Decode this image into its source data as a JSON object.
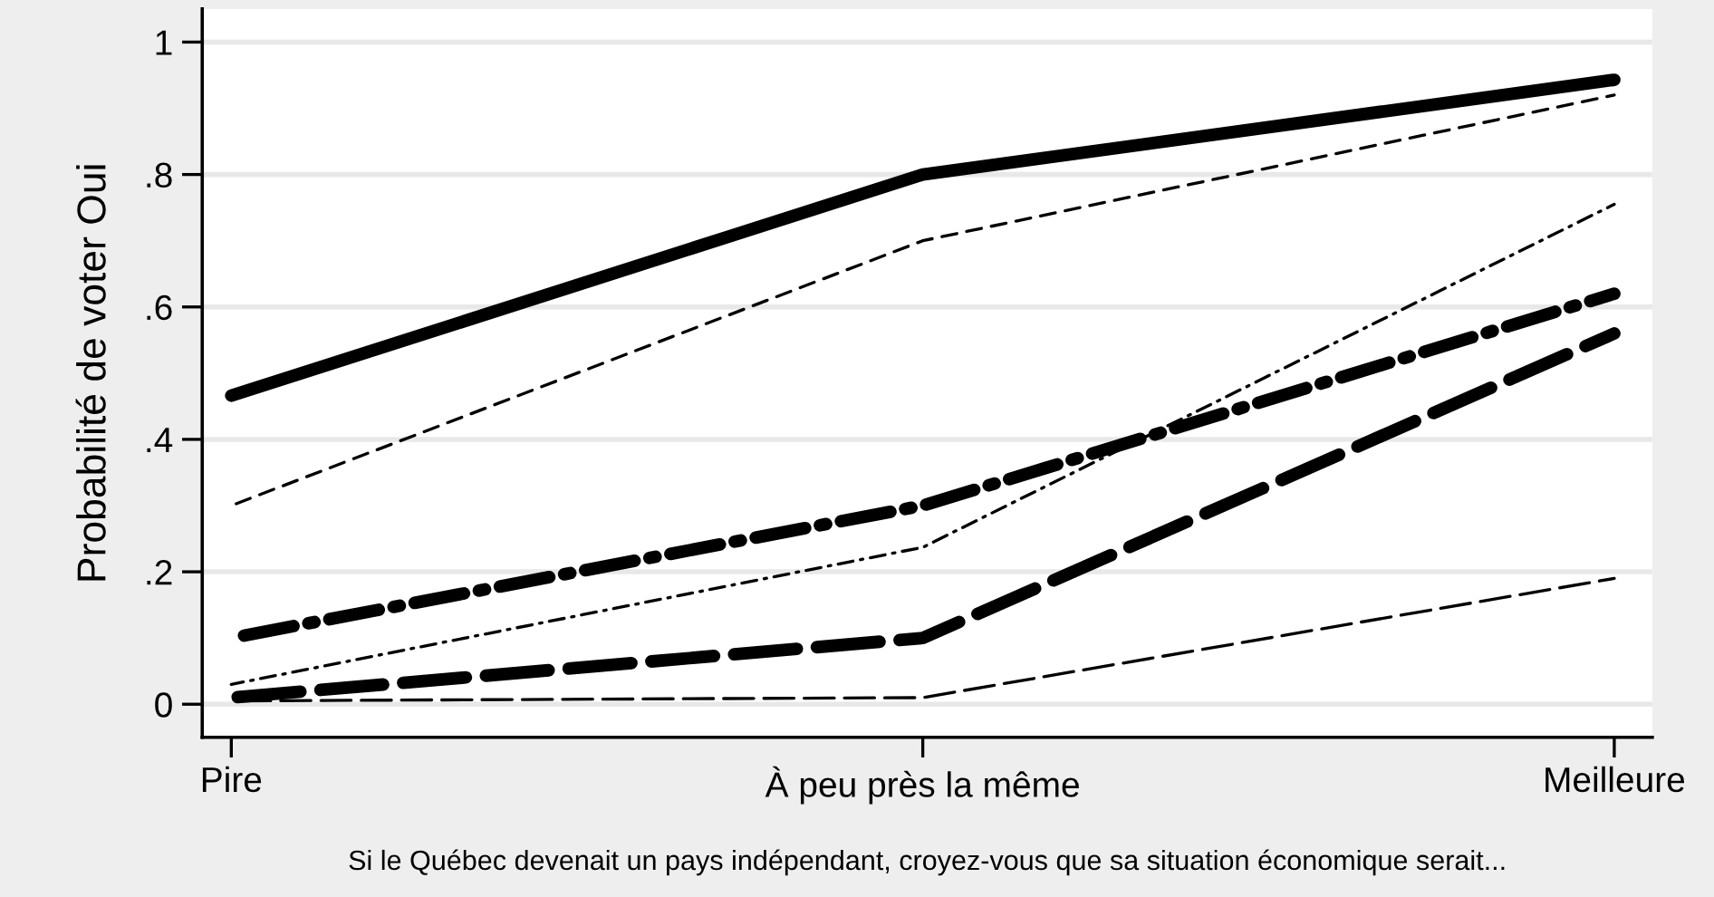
{
  "chart_data": {
    "type": "line",
    "xlabel": "Si le Québec devenait un pays indépendant, croyez-vous que sa situation économique serait...",
    "ylabel": "Probabilité de voter Oui",
    "categories": [
      "Pire",
      "À peu près la même",
      "Meilleure"
    ],
    "series": [
      {
        "color": "#000000",
        "values": [
          0.466,
          0.8,
          0.943
        ],
        "line_style": "solid"
      },
      {
        "color": "#000000",
        "values": [
          0.3,
          0.7,
          0.92
        ],
        "line_style": "dashed"
      },
      {
        "color": "#000000",
        "values": [
          0.1,
          0.3,
          0.62
        ],
        "line_style": "dashdot"
      },
      {
        "color": "#000000",
        "values": [
          0.03,
          0.237,
          0.755
        ],
        "line_style": "dashdot"
      },
      {
        "color": "#000000",
        "values": [
          0.01,
          0.1,
          0.56
        ],
        "line_style": "longdash"
      },
      {
        "color": "#000000",
        "values": [
          0.005,
          0.01,
          0.19
        ],
        "line_style": "longdash"
      }
    ],
    "ylim": [
      -0.05,
      1.05
    ],
    "yticks": [
      0,
      {
        "value": 0.2,
        "label": ".2"
      },
      {
        "value": 0.4,
        "label": ".4"
      },
      {
        "value": 0.6,
        "label": ".6"
      },
      {
        "value": 0.8,
        "label": ".8"
      },
      1
    ],
    "grid": "y",
    "marker": "none"
  }
}
